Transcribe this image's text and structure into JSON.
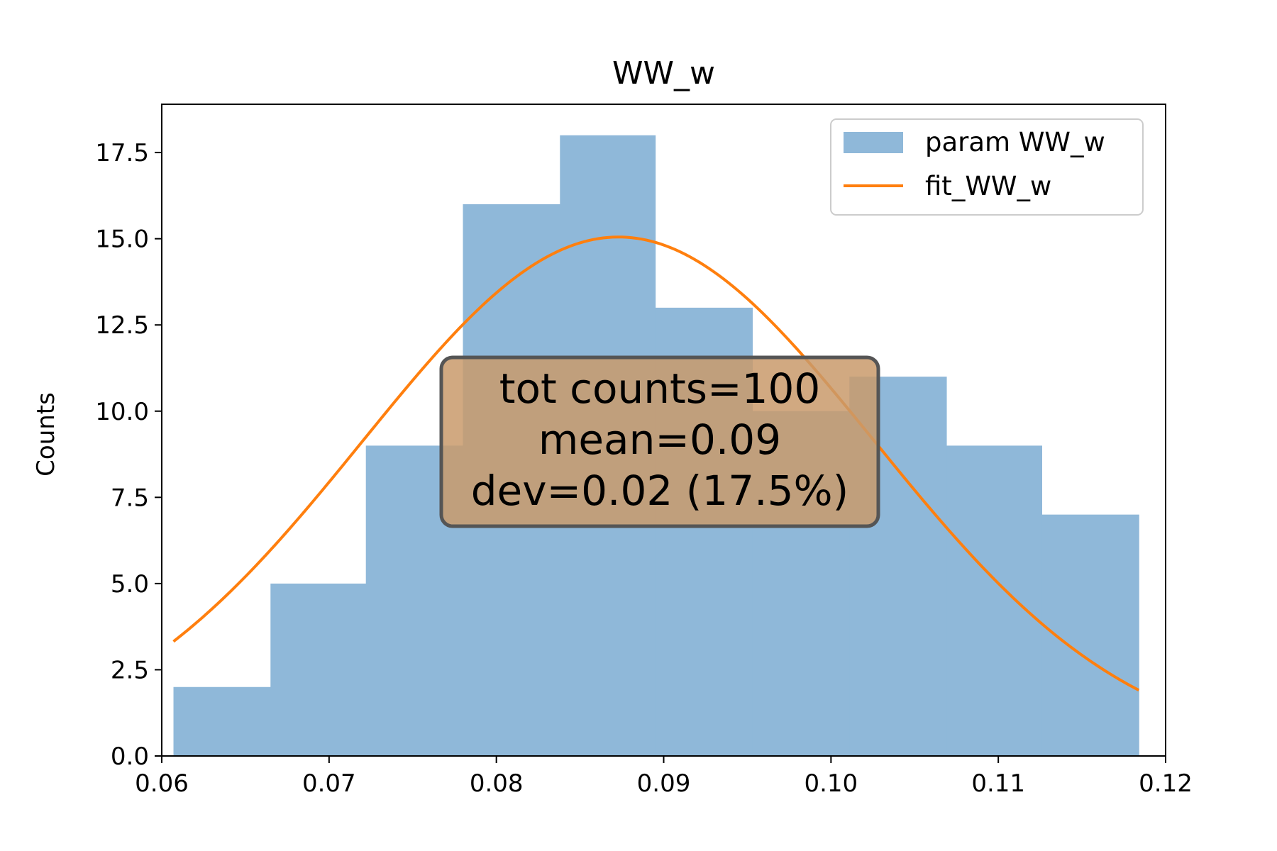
{
  "chart_data": {
    "type": "bar",
    "title": "WW_w",
    "xlabel": "",
    "ylabel": "Counts",
    "xlim": [
      0.06,
      0.12
    ],
    "ylim": [
      0,
      18.9
    ],
    "x_ticks": [
      0.06,
      0.07,
      0.08,
      0.09,
      0.1,
      0.11,
      0.12
    ],
    "x_tick_labels": [
      "0.06",
      "0.07",
      "0.08",
      "0.09",
      "0.10",
      "0.11",
      "0.12"
    ],
    "y_ticks": [
      0,
      2.5,
      5.0,
      7.5,
      10.0,
      12.5,
      15.0,
      17.5
    ],
    "y_tick_labels": [
      "0.0",
      "2.5",
      "5.0",
      "7.5",
      "10.0",
      "12.5",
      "15.0",
      "17.5"
    ],
    "histogram": {
      "name": "param WW_w",
      "color": "#8fb8d9",
      "bin_edges": [
        0.0607,
        0.0665,
        0.0722,
        0.078,
        0.0838,
        0.0895,
        0.0953,
        0.1011,
        0.1069,
        0.1126,
        0.1184
      ],
      "counts": [
        2,
        5,
        9,
        16,
        18,
        13,
        10,
        11,
        9,
        7
      ]
    },
    "fit": {
      "name": "fit_WW_w",
      "color": "#ff7f0e",
      "mean": 0.0873,
      "sigma": 0.0153,
      "amplitude": 15.05,
      "x_range": [
        0.0607,
        0.1184
      ]
    },
    "legend": {
      "placement": "top-right",
      "entries": [
        "param WW_w",
        "fit_WW_w"
      ]
    },
    "annotation": {
      "lines": [
        "tot counts=100",
        "mean=0.09",
        "dev=0.02 (17.5%)"
      ],
      "box_color": "#c99a6b",
      "border_color": "#555555"
    }
  }
}
